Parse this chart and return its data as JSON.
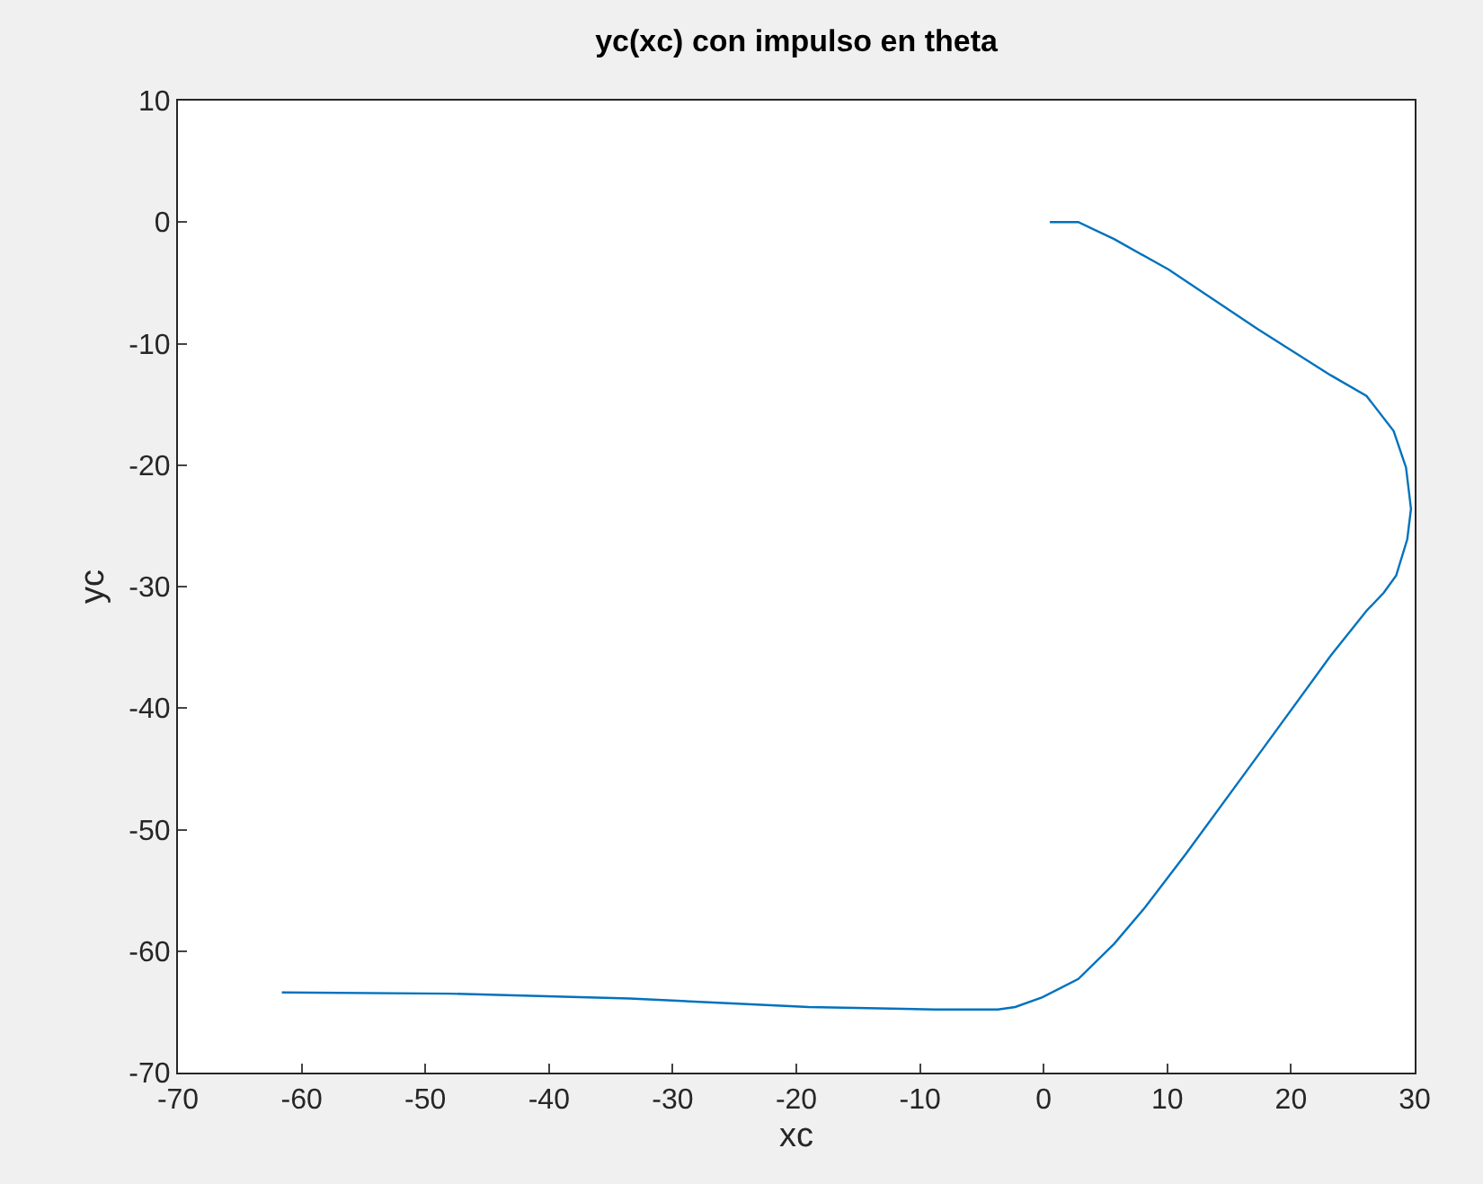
{
  "chart_data": {
    "type": "line",
    "title": "yc(xc) con impulso en theta",
    "xlabel": "xc",
    "ylabel": "yc",
    "series": [
      {
        "color": "#0072bd",
        "x": [
          0.5,
          2.8,
          5.7,
          10.1,
          17.3,
          23.2,
          26.1,
          28.3,
          29.3,
          29.7,
          29.4,
          28.5,
          27.5,
          26.1,
          23.2,
          17.4,
          11.5,
          8.2,
          5.7,
          2.8,
          -0.1,
          -2.3,
          -3.7,
          -8.8,
          -19,
          -33.5,
          -48,
          -61.6
        ],
        "values": [
          0,
          0,
          -1.4,
          -3.9,
          -8.8,
          -12.6,
          -14.3,
          -17.2,
          -20.2,
          -23.6,
          -26.1,
          -29.1,
          -30.5,
          -32,
          -35.7,
          -43.8,
          -52,
          -56.4,
          -59.4,
          -62.3,
          -63.8,
          -64.6,
          -64.8,
          -64.8,
          -64.6,
          -63.9,
          -63.5,
          -63.4
        ]
      }
    ],
    "xlim": [
      -70,
      30
    ],
    "xticks": [
      -70,
      -60,
      -50,
      -40,
      -30,
      -20,
      -10,
      0,
      10,
      20,
      30
    ],
    "ylim": [
      -70,
      10
    ],
    "yticks": [
      -70,
      -60,
      -50,
      -40,
      -30,
      -20,
      -10,
      0,
      10
    ],
    "grid": false,
    "marker": "none",
    "line_style": "solid"
  }
}
